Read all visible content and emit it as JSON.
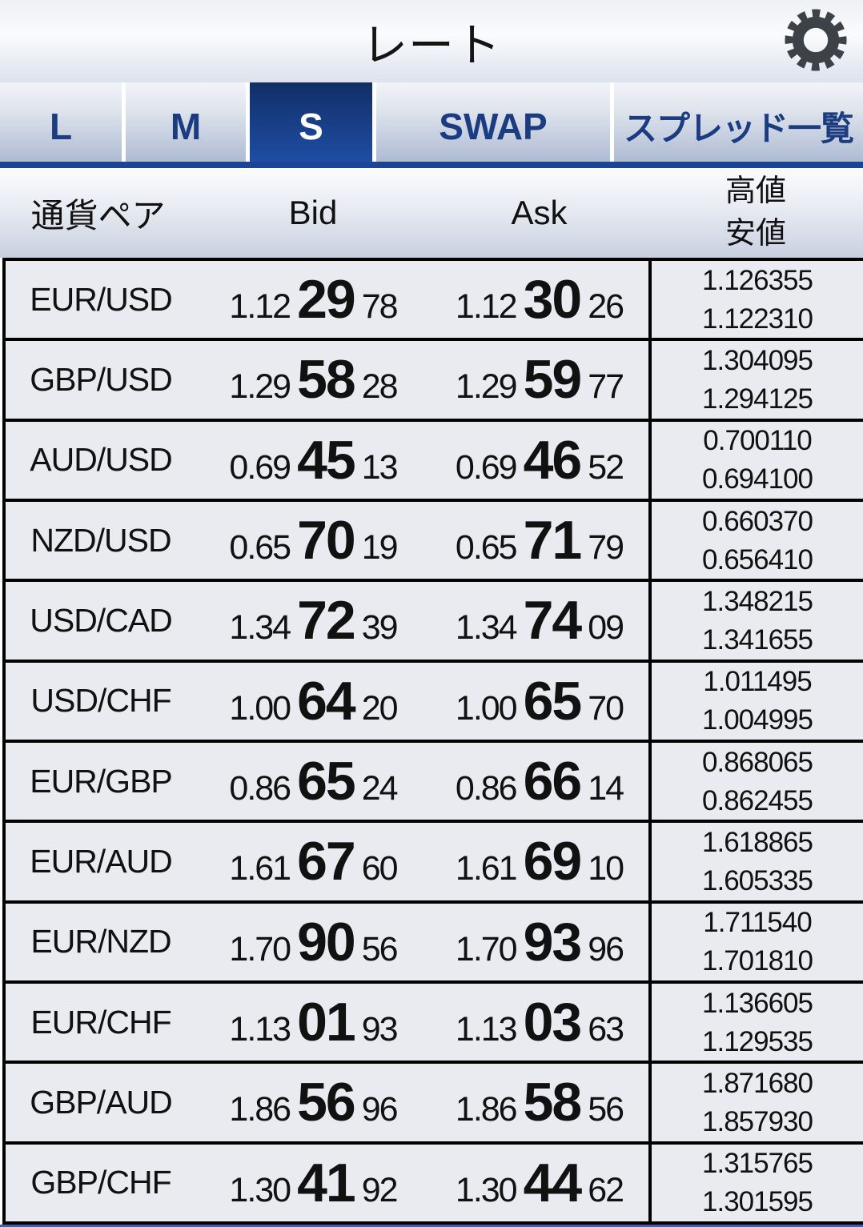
{
  "header": {
    "title": "レート"
  },
  "tabs": [
    {
      "label": "L",
      "active": false,
      "name": "tab-l"
    },
    {
      "label": "M",
      "active": false,
      "name": "tab-m"
    },
    {
      "label": "S",
      "active": true,
      "name": "tab-s"
    },
    {
      "label": "SWAP",
      "active": false,
      "name": "tab-swap"
    },
    {
      "label": "スプレッド一覧",
      "active": false,
      "name": "tab-spread-list",
      "small": true
    }
  ],
  "table": {
    "columns": {
      "pair": "通貨ペア",
      "bid": "Bid",
      "ask": "Ask",
      "high": "高値",
      "low": "安値"
    },
    "rows": [
      {
        "pair": "EUR/USD",
        "bid": {
          "head": "1.12",
          "big": "29",
          "tail": "78"
        },
        "ask": {
          "head": "1.12",
          "big": "30",
          "tail": "26"
        },
        "high": "1.126355",
        "low": "1.122310"
      },
      {
        "pair": "GBP/USD",
        "bid": {
          "head": "1.29",
          "big": "58",
          "tail": "28"
        },
        "ask": {
          "head": "1.29",
          "big": "59",
          "tail": "77"
        },
        "high": "1.304095",
        "low": "1.294125"
      },
      {
        "pair": "AUD/USD",
        "bid": {
          "head": "0.69",
          "big": "45",
          "tail": "13"
        },
        "ask": {
          "head": "0.69",
          "big": "46",
          "tail": "52"
        },
        "high": "0.700110",
        "low": "0.694100"
      },
      {
        "pair": "NZD/USD",
        "bid": {
          "head": "0.65",
          "big": "70",
          "tail": "19"
        },
        "ask": {
          "head": "0.65",
          "big": "71",
          "tail": "79"
        },
        "high": "0.660370",
        "low": "0.656410"
      },
      {
        "pair": "USD/CAD",
        "bid": {
          "head": "1.34",
          "big": "72",
          "tail": "39"
        },
        "ask": {
          "head": "1.34",
          "big": "74",
          "tail": "09"
        },
        "high": "1.348215",
        "low": "1.341655"
      },
      {
        "pair": "USD/CHF",
        "bid": {
          "head": "1.00",
          "big": "64",
          "tail": "20"
        },
        "ask": {
          "head": "1.00",
          "big": "65",
          "tail": "70"
        },
        "high": "1.011495",
        "low": "1.004995"
      },
      {
        "pair": "EUR/GBP",
        "bid": {
          "head": "0.86",
          "big": "65",
          "tail": "24"
        },
        "ask": {
          "head": "0.86",
          "big": "66",
          "tail": "14"
        },
        "high": "0.868065",
        "low": "0.862455"
      },
      {
        "pair": "EUR/AUD",
        "bid": {
          "head": "1.61",
          "big": "67",
          "tail": "60"
        },
        "ask": {
          "head": "1.61",
          "big": "69",
          "tail": "10"
        },
        "high": "1.618865",
        "low": "1.605335"
      },
      {
        "pair": "EUR/NZD",
        "bid": {
          "head": "1.70",
          "big": "90",
          "tail": "56"
        },
        "ask": {
          "head": "1.70",
          "big": "93",
          "tail": "96"
        },
        "high": "1.711540",
        "low": "1.701810"
      },
      {
        "pair": "EUR/CHF",
        "bid": {
          "head": "1.13",
          "big": "01",
          "tail": "93"
        },
        "ask": {
          "head": "1.13",
          "big": "03",
          "tail": "63"
        },
        "high": "1.136605",
        "low": "1.129535"
      },
      {
        "pair": "GBP/AUD",
        "bid": {
          "head": "1.86",
          "big": "56",
          "tail": "96"
        },
        "ask": {
          "head": "1.86",
          "big": "58",
          "tail": "56"
        },
        "high": "1.871680",
        "low": "1.857930"
      },
      {
        "pair": "GBP/CHF",
        "bid": {
          "head": "1.30",
          "big": "41",
          "tail": "92"
        },
        "ask": {
          "head": "1.30",
          "big": "44",
          "tail": "62"
        },
        "high": "1.315765",
        "low": "1.301595"
      }
    ]
  },
  "colors": {
    "active_tab_top": "#122f66",
    "active_tab_bottom": "#1e4da4",
    "tab_text": "#1b3c80",
    "tab_underline": "#1c4396",
    "row_background": "#e9ebf1",
    "border": "#000000",
    "gear_icon": "#3d4248"
  }
}
